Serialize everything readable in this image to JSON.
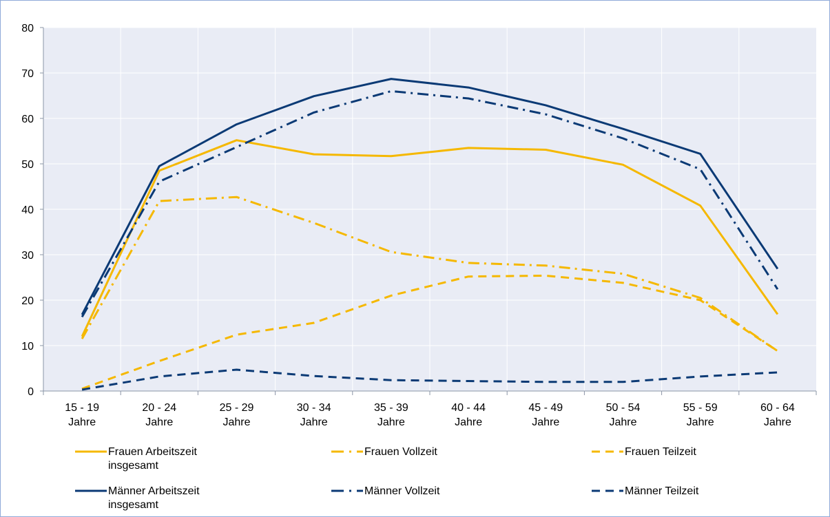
{
  "chart_data": {
    "type": "line",
    "title": "",
    "xlabel": "",
    "ylabel": "",
    "ylim": [
      0,
      80
    ],
    "y_ticks": [
      "0",
      "10",
      "20",
      "30",
      "40",
      "50",
      "60",
      "70",
      "80"
    ],
    "grid": true,
    "legend_position": "bottom",
    "categories": [
      [
        "15 - 19",
        "Jahre"
      ],
      [
        "20 - 24",
        "Jahre"
      ],
      [
        "25 - 29",
        "Jahre"
      ],
      [
        "30 - 34",
        "Jahre"
      ],
      [
        "35 - 39",
        "Jahre"
      ],
      [
        "40 - 44",
        "Jahre"
      ],
      [
        "45 - 49",
        "Jahre"
      ],
      [
        "50 - 54",
        "Jahre"
      ],
      [
        "55 - 59",
        "Jahre"
      ],
      [
        "60 - 64",
        "Jahre"
      ]
    ],
    "colors": {
      "frauen": "#f5b800",
      "maenner": "#0b3a75",
      "plot_bg": "#e9ecf5",
      "grid": "#ffffff",
      "axis": "#8a94a6"
    },
    "series": [
      {
        "name": "Frauen Arbeitszeit insgesamt",
        "label_lines": [
          "Frauen Arbeitszeit",
          "insgesamt"
        ],
        "color": "frauen",
        "style": "solid",
        "values": [
          12,
          48.5,
          55.2,
          52.1,
          51.7,
          53.5,
          53.1,
          49.8,
          40.8,
          16.9
        ]
      },
      {
        "name": "Frauen Vollzeit",
        "label_lines": [
          "Frauen Vollzeit"
        ],
        "color": "frauen",
        "style": "dashdot",
        "values": [
          11.5,
          41.8,
          42.7,
          37.0,
          30.6,
          28.2,
          27.6,
          25.8,
          20.5,
          8.8
        ]
      },
      {
        "name": "Frauen Teilzeit",
        "label_lines": [
          "Frauen Teilzeit"
        ],
        "color": "frauen",
        "style": "dash",
        "values": [
          0.5,
          6.6,
          12.4,
          15.0,
          21.0,
          25.2,
          25.4,
          23.8,
          20.0,
          8.8
        ]
      },
      {
        "name": "Männer Arbeitszeit insgesamt",
        "label_lines": [
          "Männer Arbeitszeit",
          "insgesamt"
        ],
        "color": "maenner",
        "style": "solid",
        "values": [
          16.8,
          49.5,
          58.7,
          64.9,
          68.7,
          66.8,
          62.9,
          57.7,
          52.2,
          26.9
        ]
      },
      {
        "name": "Männer Vollzeit",
        "label_lines": [
          "Männer Vollzeit"
        ],
        "color": "maenner",
        "style": "dashdot",
        "values": [
          16.3,
          46.1,
          53.7,
          61.3,
          66.0,
          64.4,
          60.9,
          55.6,
          48.8,
          22.4
        ]
      },
      {
        "name": "Männer Teilzeit",
        "label_lines": [
          "Männer Teilzeit"
        ],
        "color": "maenner",
        "style": "dash",
        "values": [
          0.3,
          3.2,
          4.7,
          3.3,
          2.4,
          2.2,
          2.0,
          2.0,
          3.2,
          4.1
        ]
      }
    ]
  }
}
